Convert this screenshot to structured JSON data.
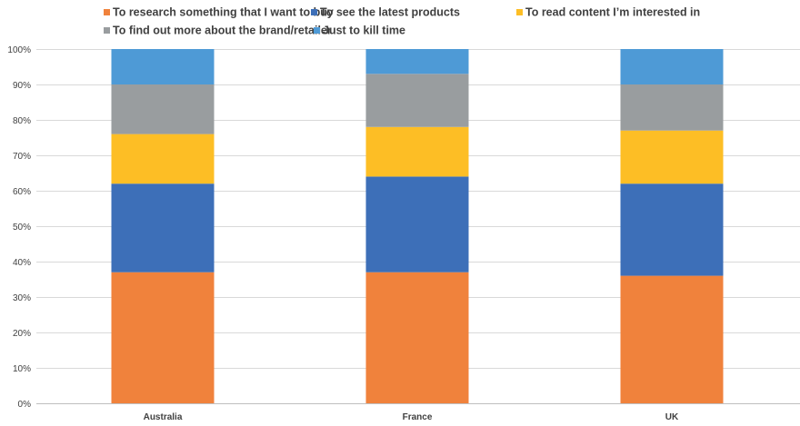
{
  "chart_data": {
    "type": "bar",
    "stacked": true,
    "percent": true,
    "categories": [
      "Australia",
      "France",
      "UK"
    ],
    "series": [
      {
        "name": "To research something that I want to buy",
        "color": "#f0823c",
        "values": [
          37,
          37,
          36
        ]
      },
      {
        "name": "To see the latest products",
        "color": "#3d6fb8",
        "values": [
          25,
          27,
          26
        ]
      },
      {
        "name": "To read content I’m interested in",
        "color": "#fdbe25",
        "values": [
          14,
          14,
          15
        ]
      },
      {
        "name": "To find out more about the brand/retailer",
        "color": "#999d9f",
        "values": [
          14,
          15,
          13
        ]
      },
      {
        "name": "Just to kill time",
        "color": "#4e9ad6",
        "values": [
          10,
          7,
          10
        ]
      }
    ],
    "ylim": [
      0,
      100
    ],
    "yticks": [
      "0%",
      "10%",
      "20%",
      "30%",
      "40%",
      "50%",
      "60%",
      "70%",
      "80%",
      "90%",
      "100%"
    ],
    "grid": true,
    "legend_position": "top"
  }
}
